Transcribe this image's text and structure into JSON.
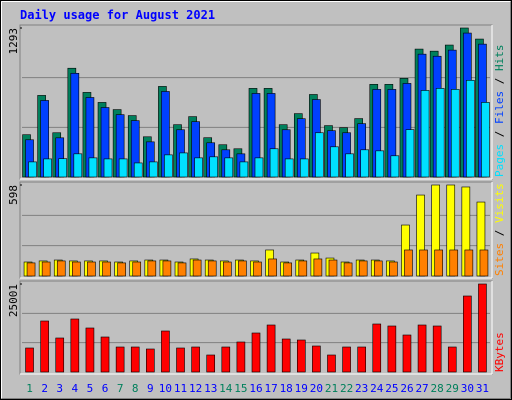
{
  "chart_data": [
    {
      "type": "bar",
      "title": "Daily usage for August 2021",
      "series": [
        {
          "name": "Hits",
          "color": "#00805c",
          "values": [
            367,
            708,
            384,
            944,
            734,
            647,
            585,
            533,
            349,
            786,
            454,
            524,
            341,
            280,
            245,
            769,
            769,
            454,
            550,
            716,
            446,
            428,
            507,
            804,
            804,
            856,
            1110,
            1092,
            1145,
            1293,
            1197
          ]
        },
        {
          "name": "Files",
          "color": "#0040ff",
          "values": [
            323,
            664,
            340,
            900,
            690,
            603,
            541,
            489,
            305,
            742,
            410,
            480,
            297,
            236,
            201,
            725,
            725,
            410,
            506,
            672,
            402,
            384,
            463,
            760,
            760,
            812,
            1066,
            1048,
            1101,
            1249,
            1153
          ]
        },
        {
          "name": "Pages",
          "color": "#00e0ff",
          "values": [
            131,
            157,
            159,
            201,
            166,
            157,
            157,
            122,
            131,
            192,
            209,
            166,
            175,
            166,
            131,
            166,
            245,
            157,
            157,
            384,
            262,
            201,
            236,
            227,
            184,
            411,
            751,
            769,
            760,
            839,
            647
          ]
        }
      ],
      "ylim": [
        0,
        1293
      ],
      "yticks": [
        1293
      ]
    },
    {
      "type": "bar",
      "series": [
        {
          "name": "Visits",
          "color": "#ffff00",
          "values": [
            92,
            99,
            105,
            99,
            99,
            99,
            92,
            99,
            105,
            105,
            92,
            112,
            105,
            99,
            105,
            99,
            171,
            92,
            105,
            151,
            118,
            92,
            105,
            105,
            99,
            335,
            532,
            598,
            598,
            585,
            486
          ]
        },
        {
          "name": "Sites",
          "color": "#ff8000",
          "values": [
            86,
            92,
            99,
            92,
            92,
            92,
            86,
            92,
            99,
            99,
            86,
            105,
            99,
            92,
            99,
            92,
            112,
            86,
            99,
            112,
            105,
            86,
            99,
            99,
            92,
            171,
            171,
            171,
            171,
            171,
            171
          ]
        }
      ],
      "ylim": [
        0,
        598
      ],
      "yticks": [
        598
      ]
    },
    {
      "type": "bar",
      "series": [
        {
          "name": "KBytes",
          "color": "#ff0000",
          "values": [
            6818,
            14490,
            9659,
            15058,
            12500,
            9944,
            7102,
            7102,
            6534,
            11648,
            6818,
            7102,
            4830,
            7102,
            8523,
            11080,
            13353,
            9375,
            9091,
            7387,
            4830,
            7102,
            7102,
            13637,
            13069,
            10512,
            13353,
            13069,
            7102,
            21592,
            25001
          ]
        }
      ],
      "ylim": [
        0,
        25001
      ],
      "yticks": [
        25001
      ],
      "categories": [
        "1",
        "2",
        "3",
        "4",
        "5",
        "6",
        "7",
        "8",
        "9",
        "10",
        "11",
        "12",
        "13",
        "14",
        "15",
        "16",
        "17",
        "18",
        "19",
        "20",
        "21",
        "22",
        "23",
        "24",
        "25",
        "26",
        "27",
        "28",
        "29",
        "30",
        "31"
      ],
      "category_colors": [
        "#00805c",
        "#0000ff",
        "#0000ff",
        "#0000ff",
        "#0000ff",
        "#0000ff",
        "#00805c",
        "#00805c",
        "#0000ff",
        "#0000ff",
        "#0000ff",
        "#0000ff",
        "#0000ff",
        "#00805c",
        "#00805c",
        "#0000ff",
        "#0000ff",
        "#0000ff",
        "#0000ff",
        "#0000ff",
        "#00805c",
        "#00805c",
        "#0000ff",
        "#0000ff",
        "#0000ff",
        "#0000ff",
        "#0000ff",
        "#00805c",
        "#00805c",
        "#0000ff",
        "#0000ff"
      ]
    }
  ]
}
